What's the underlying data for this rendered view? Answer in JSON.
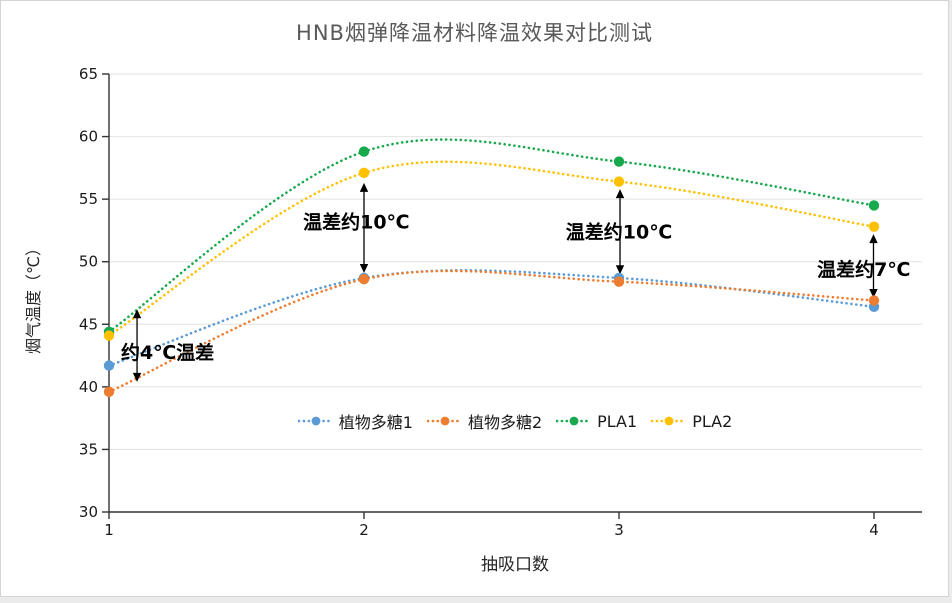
{
  "title": "HNB烟弹降温材料降温效果对比测试",
  "chart_data": {
    "type": "line",
    "style": {
      "line_style": "dotted",
      "smooth": true,
      "marker": "circle",
      "grid": true,
      "grid_color": "#e2e2e2",
      "axis_color": "#333333",
      "annotation_color": "#000000",
      "legend_position": "inside-bottom-center"
    },
    "x": [
      1,
      2,
      3,
      4
    ],
    "xticks": [
      "1",
      "2",
      "3",
      "4"
    ],
    "yticks": [
      30,
      35,
      40,
      45,
      50,
      55,
      60,
      65
    ],
    "ylim": [
      30,
      65
    ],
    "xlabel": "抽吸口数",
    "ylabel": "烟气温度（℃）",
    "series": [
      {
        "name": "植物多糖1",
        "color": "#5B9BD5",
        "values": [
          41.7,
          48.7,
          48.7,
          46.4
        ]
      },
      {
        "name": "植物多糖2",
        "color": "#ED7D31",
        "values": [
          39.6,
          48.6,
          48.4,
          46.9
        ]
      },
      {
        "name": "PLA1",
        "color": "#18A84D",
        "values": [
          44.4,
          58.8,
          58.0,
          54.5
        ]
      },
      {
        "name": "PLA2",
        "color": "#FFC000",
        "values": [
          44.1,
          57.1,
          56.4,
          52.8
        ]
      }
    ],
    "annotations": [
      {
        "text": "约4℃温差",
        "text_x": 1.23,
        "text_y": 42.8,
        "arrow_x": 1.11,
        "arrow_from": 46.2,
        "arrow_to": 40.4
      },
      {
        "text": "温差约10℃",
        "text_x": 1.97,
        "text_y": 53.2,
        "arrow_x": 2.0,
        "arrow_from": 56.3,
        "arrow_to": 49.1
      },
      {
        "text": "温差约10℃",
        "text_x": 3.0,
        "text_y": 52.4,
        "arrow_x": 3.004,
        "arrow_from": 55.8,
        "arrow_to": 49.0
      },
      {
        "text": "温差约7℃",
        "text_x": 3.96,
        "text_y": 49.4,
        "arrow_x": 3.998,
        "arrow_from": 52.2,
        "arrow_to": 47.1
      }
    ]
  }
}
